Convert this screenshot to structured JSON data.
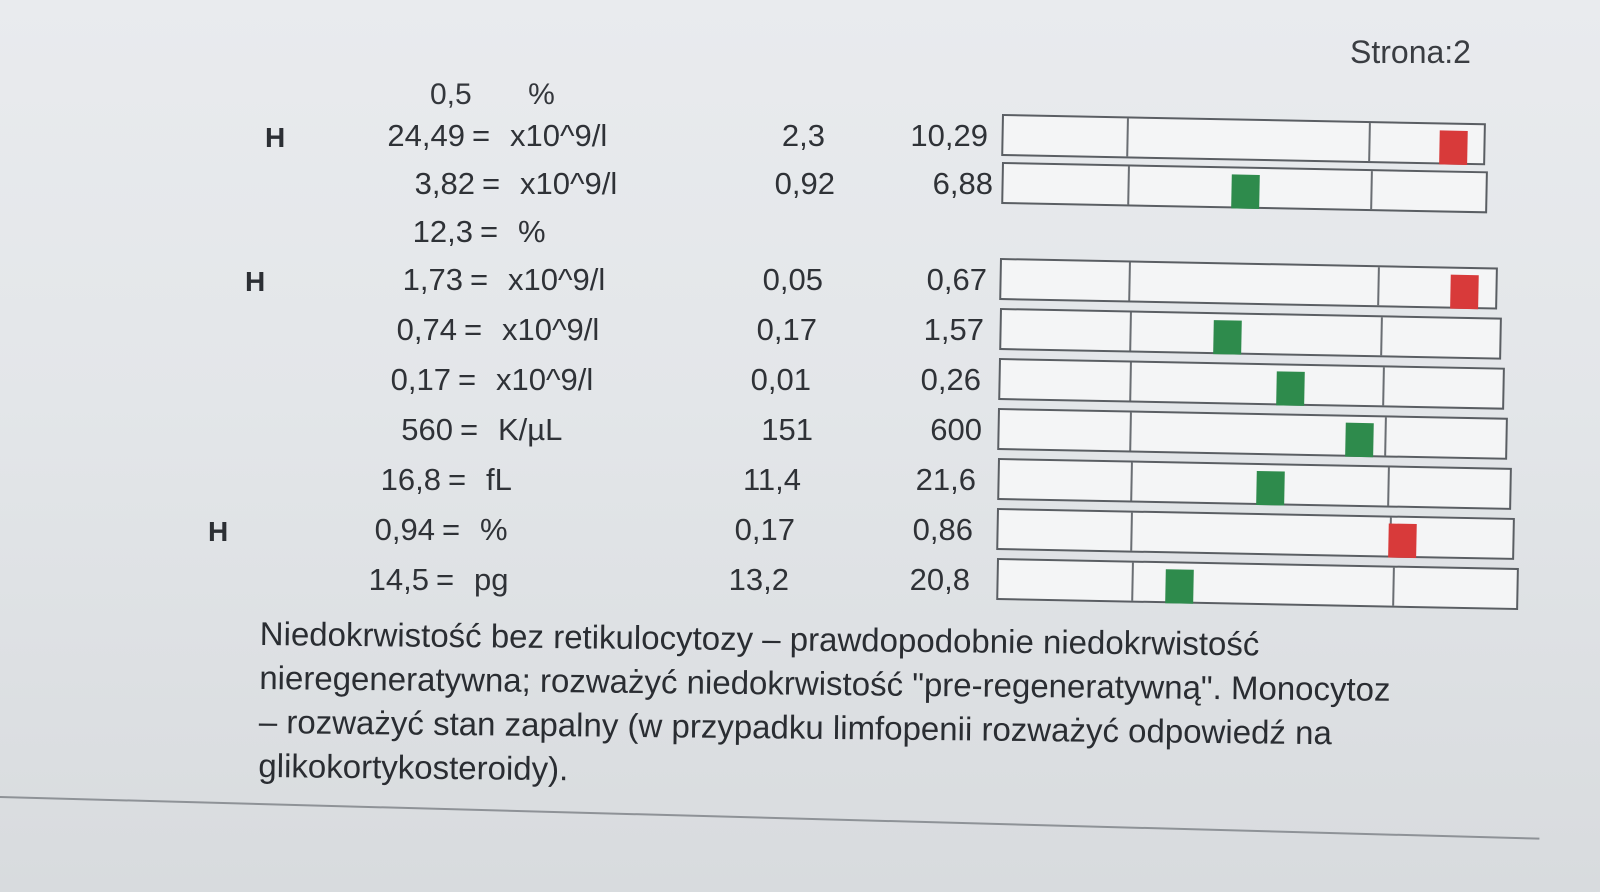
{
  "page_number": "Strona:2",
  "top_row": {
    "value": "0,5",
    "unit": "%"
  },
  "rows": [
    {
      "flag": "H",
      "value": "24,49",
      "eq": "=",
      "unit": "x10^9/l",
      "ref_low": "2,3",
      "ref_high": "10,29",
      "marker_status": "high",
      "marker_position": 0.96
    },
    {
      "flag": "",
      "value": "3,82",
      "eq": "=",
      "unit": "x10^9/l",
      "ref_low": "0,92",
      "ref_high": "6,88",
      "marker_status": "normal",
      "marker_position": 0.5
    },
    {
      "flag": "",
      "value": "12,3",
      "eq": "=",
      "unit": "%",
      "ref_low": "",
      "ref_high": "",
      "marker_status": "",
      "marker_position": null
    },
    {
      "flag": "H",
      "value": "1,73",
      "eq": "=",
      "unit": "x10^9/l",
      "ref_low": "0,05",
      "ref_high": "0,67",
      "marker_status": "high",
      "marker_position": 0.96
    },
    {
      "flag": "",
      "value": "0,74",
      "eq": "=",
      "unit": "x10^9/l",
      "ref_low": "0,17",
      "ref_high": "1,57",
      "marker_status": "normal",
      "marker_position": 0.45
    },
    {
      "flag": "",
      "value": "0,17",
      "eq": "=",
      "unit": "x10^9/l",
      "ref_low": "0,01",
      "ref_high": "0,26",
      "marker_status": "normal",
      "marker_position": 0.58
    },
    {
      "flag": "",
      "value": "560",
      "eq": "=",
      "unit": "K/µL",
      "ref_low": "151",
      "ref_high": "600",
      "marker_status": "normal",
      "marker_position": 0.72
    },
    {
      "flag": "",
      "value": "16,8",
      "eq": "=",
      "unit": "fL",
      "ref_low": "11,4",
      "ref_high": "21,6",
      "marker_status": "normal",
      "marker_position": 0.53
    },
    {
      "flag": "H",
      "value": "0,94",
      "eq": "=",
      "unit": "%",
      "ref_low": "0,17",
      "ref_high": "0,86",
      "marker_status": "high",
      "marker_position": 0.8
    },
    {
      "flag": "",
      "value": "14,5",
      "eq": "=",
      "unit": "pg",
      "ref_low": "13,2",
      "ref_high": "20,8",
      "marker_status": "normal",
      "marker_position": 0.34
    }
  ],
  "comment_lines": [
    "Niedokrwistość bez retikulocytozy – prawdopodobnie niedokrwistość",
    "nieregeneratywna; rozważyć niedokrwistość \"pre-regeneratywną\". Monocytoz",
    "– rozważyć stan zapalny (w przypadku limfopenii rozważyć odpowiedź na",
    "glikokortykosteroidy)."
  ],
  "colors": {
    "normal": "#2e8b4c",
    "high": "#d83a3a"
  }
}
